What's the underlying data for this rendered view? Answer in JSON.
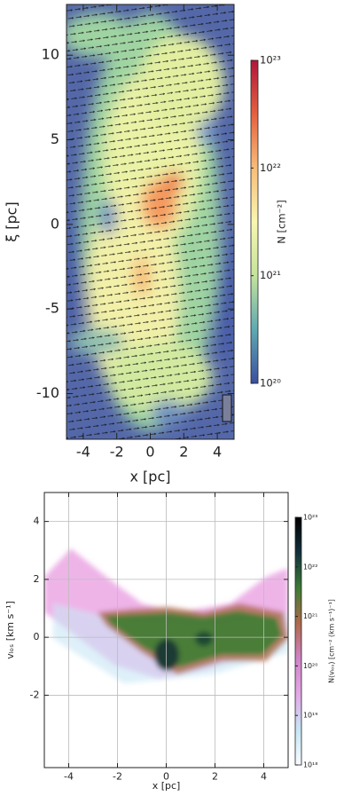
{
  "chart_data": [
    {
      "type": "heatmap",
      "xlabel": "x [pc]",
      "ylabel": "ξ [pc]",
      "xlim": [
        -5,
        5
      ],
      "ylim": [
        -12.7,
        13
      ],
      "xticks": [
        -4,
        -2,
        0,
        2,
        4
      ],
      "yticks": [
        -10,
        -5,
        0,
        5,
        10
      ],
      "grid": false,
      "colorbar": {
        "label": "N [cm⁻²]",
        "scale": "log",
        "lim": [
          1e+20,
          1e+23
        ],
        "ticks": [
          {
            "value": 1e+20,
            "label": "10²⁰"
          },
          {
            "value": 1e+21,
            "label": "10²¹"
          },
          {
            "value": 1e+22,
            "label": "10²²"
          },
          {
            "value": 1e+23,
            "label": "10²³"
          }
        ],
        "colormap": [
          "#3b4f9f",
          "#5ea9b2",
          "#c4e49b",
          "#f8f6b0",
          "#f8bd78",
          "#e5603f",
          "#b0163b"
        ]
      }
    },
    {
      "type": "heatmap",
      "xlabel": "x [pc]",
      "ylabel": "vₗₒₛ [km s⁻¹]",
      "xlim": [
        -5,
        5
      ],
      "ylim": [
        -4.5,
        5
      ],
      "xticks": [
        -4,
        -2,
        0,
        2,
        4
      ],
      "yticks": [
        -2,
        0,
        2,
        4
      ],
      "grid": true,
      "colorbar": {
        "label": "N(vₗₒₛ) [cm⁻² (km s⁻¹)⁻¹]",
        "scale": "log",
        "lim": [
          1e+18,
          1e+23
        ],
        "ticks": [
          {
            "value": 1e+18,
            "label": "10¹⁸"
          },
          {
            "value": 1e+19,
            "label": "10¹⁹"
          },
          {
            "value": 1e+20,
            "label": "10²⁰"
          },
          {
            "value": 1e+21,
            "label": "10²¹"
          },
          {
            "value": 1e+22,
            "label": "10²²"
          },
          {
            "value": 1e+23,
            "label": "10²³"
          }
        ],
        "colormap": [
          "#f7fbff",
          "#c6e6f6",
          "#e4a8e6",
          "#d184c8",
          "#b06a4a",
          "#3c7c34",
          "#12303c",
          "#000000"
        ]
      }
    }
  ]
}
